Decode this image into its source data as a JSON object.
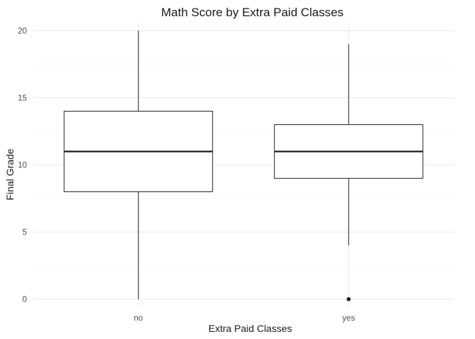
{
  "chart_data": {
    "type": "boxplot",
    "title": "Math Score by Extra Paid Classes",
    "xlabel": "Extra Paid Classes",
    "ylabel": "Final Grade",
    "categories": [
      "no",
      "yes"
    ],
    "boxes": [
      {
        "category": "no",
        "whisker_low": 0,
        "q1": 8,
        "median": 11,
        "q3": 14,
        "whisker_high": 20,
        "outliers": []
      },
      {
        "category": "yes",
        "whisker_low": 4,
        "q1": 9,
        "median": 11,
        "q3": 13,
        "whisker_high": 19,
        "outliers": [
          0
        ]
      }
    ],
    "ylim": [
      -0.6,
      20.6
    ],
    "yticks": [
      0,
      5,
      10,
      15,
      20
    ],
    "ytick_labels": [
      "0",
      "5",
      "10",
      "15",
      "20"
    ],
    "grid": true,
    "legend": "none",
    "colors": {
      "box_fill": "#ffffff",
      "box_stroke": "#333333",
      "grid": "#ebebeb"
    }
  }
}
